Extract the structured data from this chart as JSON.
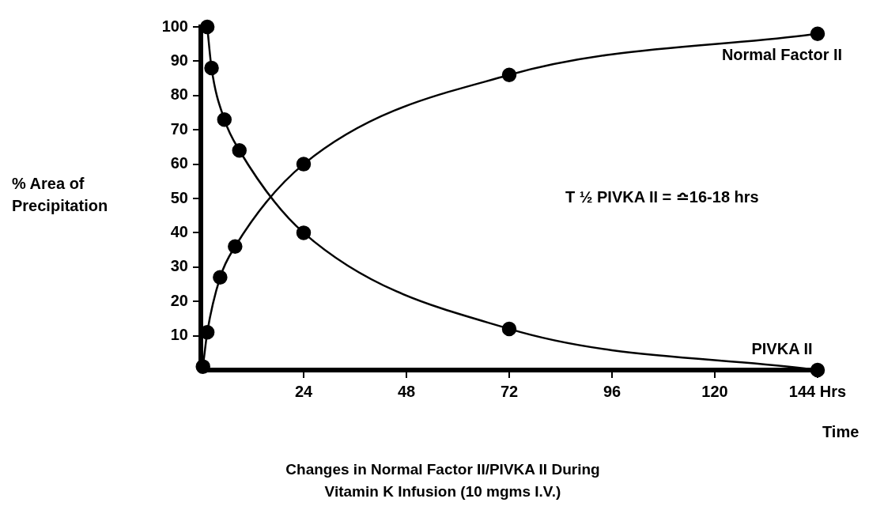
{
  "chart_data": {
    "type": "line",
    "title": "Changes in Normal Factor II/PIVKA II During Vitamin K Infusion (10 mgms I.V.)",
    "xlabel": "Time",
    "ylabel": "% Area of Precipitation",
    "annotations": [
      "T ½  PIVKA II = ≏16-18 hrs"
    ],
    "series": [
      {
        "name": "Normal Factor II",
        "color": "#000000",
        "x": [
          0.5,
          1.5,
          4.5,
          8,
          24,
          72,
          144
        ],
        "values": [
          1,
          11,
          27,
          36,
          60,
          86,
          98
        ]
      },
      {
        "name": "PIVKA II",
        "color": "#000000",
        "x": [
          1.5,
          2.5,
          5.5,
          9,
          24,
          72,
          144
        ],
        "values": [
          100,
          88,
          73,
          64,
          40,
          12,
          0
        ]
      }
    ],
    "xlim": [
      0,
      144
    ],
    "xticks": [
      24,
      48,
      72,
      96,
      120,
      {
        "value": 144,
        "label": "144 Hrs"
      }
    ],
    "ylim": [
      0,
      100
    ],
    "yticks": [
      10,
      20,
      30,
      40,
      50,
      60,
      70,
      80,
      90,
      100
    ],
    "grid": false,
    "legend": false,
    "marker": "circle",
    "line_style": "solid"
  }
}
